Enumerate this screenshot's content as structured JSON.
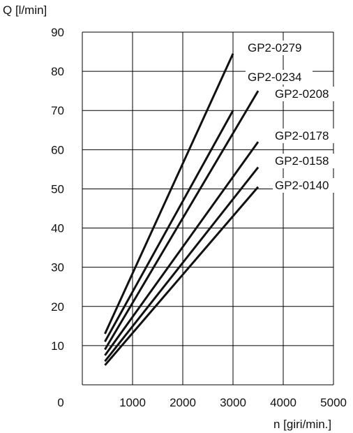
{
  "chart_data": {
    "type": "line",
    "ylabel": "Q [l/min]",
    "xlabel": "n [giri/min.]",
    "xlim": [
      0,
      5000
    ],
    "ylim": [
      0,
      90
    ],
    "grid": true,
    "x_ticks": [
      "0",
      "1000",
      "2000",
      "3000",
      "4000",
      "5000"
    ],
    "y_ticks": [
      "10",
      "20",
      "30",
      "40",
      "50",
      "60",
      "70",
      "80",
      "90"
    ],
    "series": [
      {
        "name": "GP2-0279",
        "x": [
          450,
          3000
        ],
        "y": [
          13,
          84.5
        ]
      },
      {
        "name": "GP2-0234",
        "x": [
          450,
          3000
        ],
        "y": [
          11,
          70
        ]
      },
      {
        "name": "GP2-0208",
        "x": [
          450,
          3500
        ],
        "y": [
          9,
          75
        ]
      },
      {
        "name": "GP2-0178",
        "x": [
          450,
          3500
        ],
        "y": [
          7.5,
          62
        ]
      },
      {
        "name": "GP2-0158",
        "x": [
          450,
          3500
        ],
        "y": [
          6,
          55.5
        ]
      },
      {
        "name": "GP2-0140",
        "x": [
          450,
          3500
        ],
        "y": [
          5,
          50.5
        ]
      }
    ]
  }
}
